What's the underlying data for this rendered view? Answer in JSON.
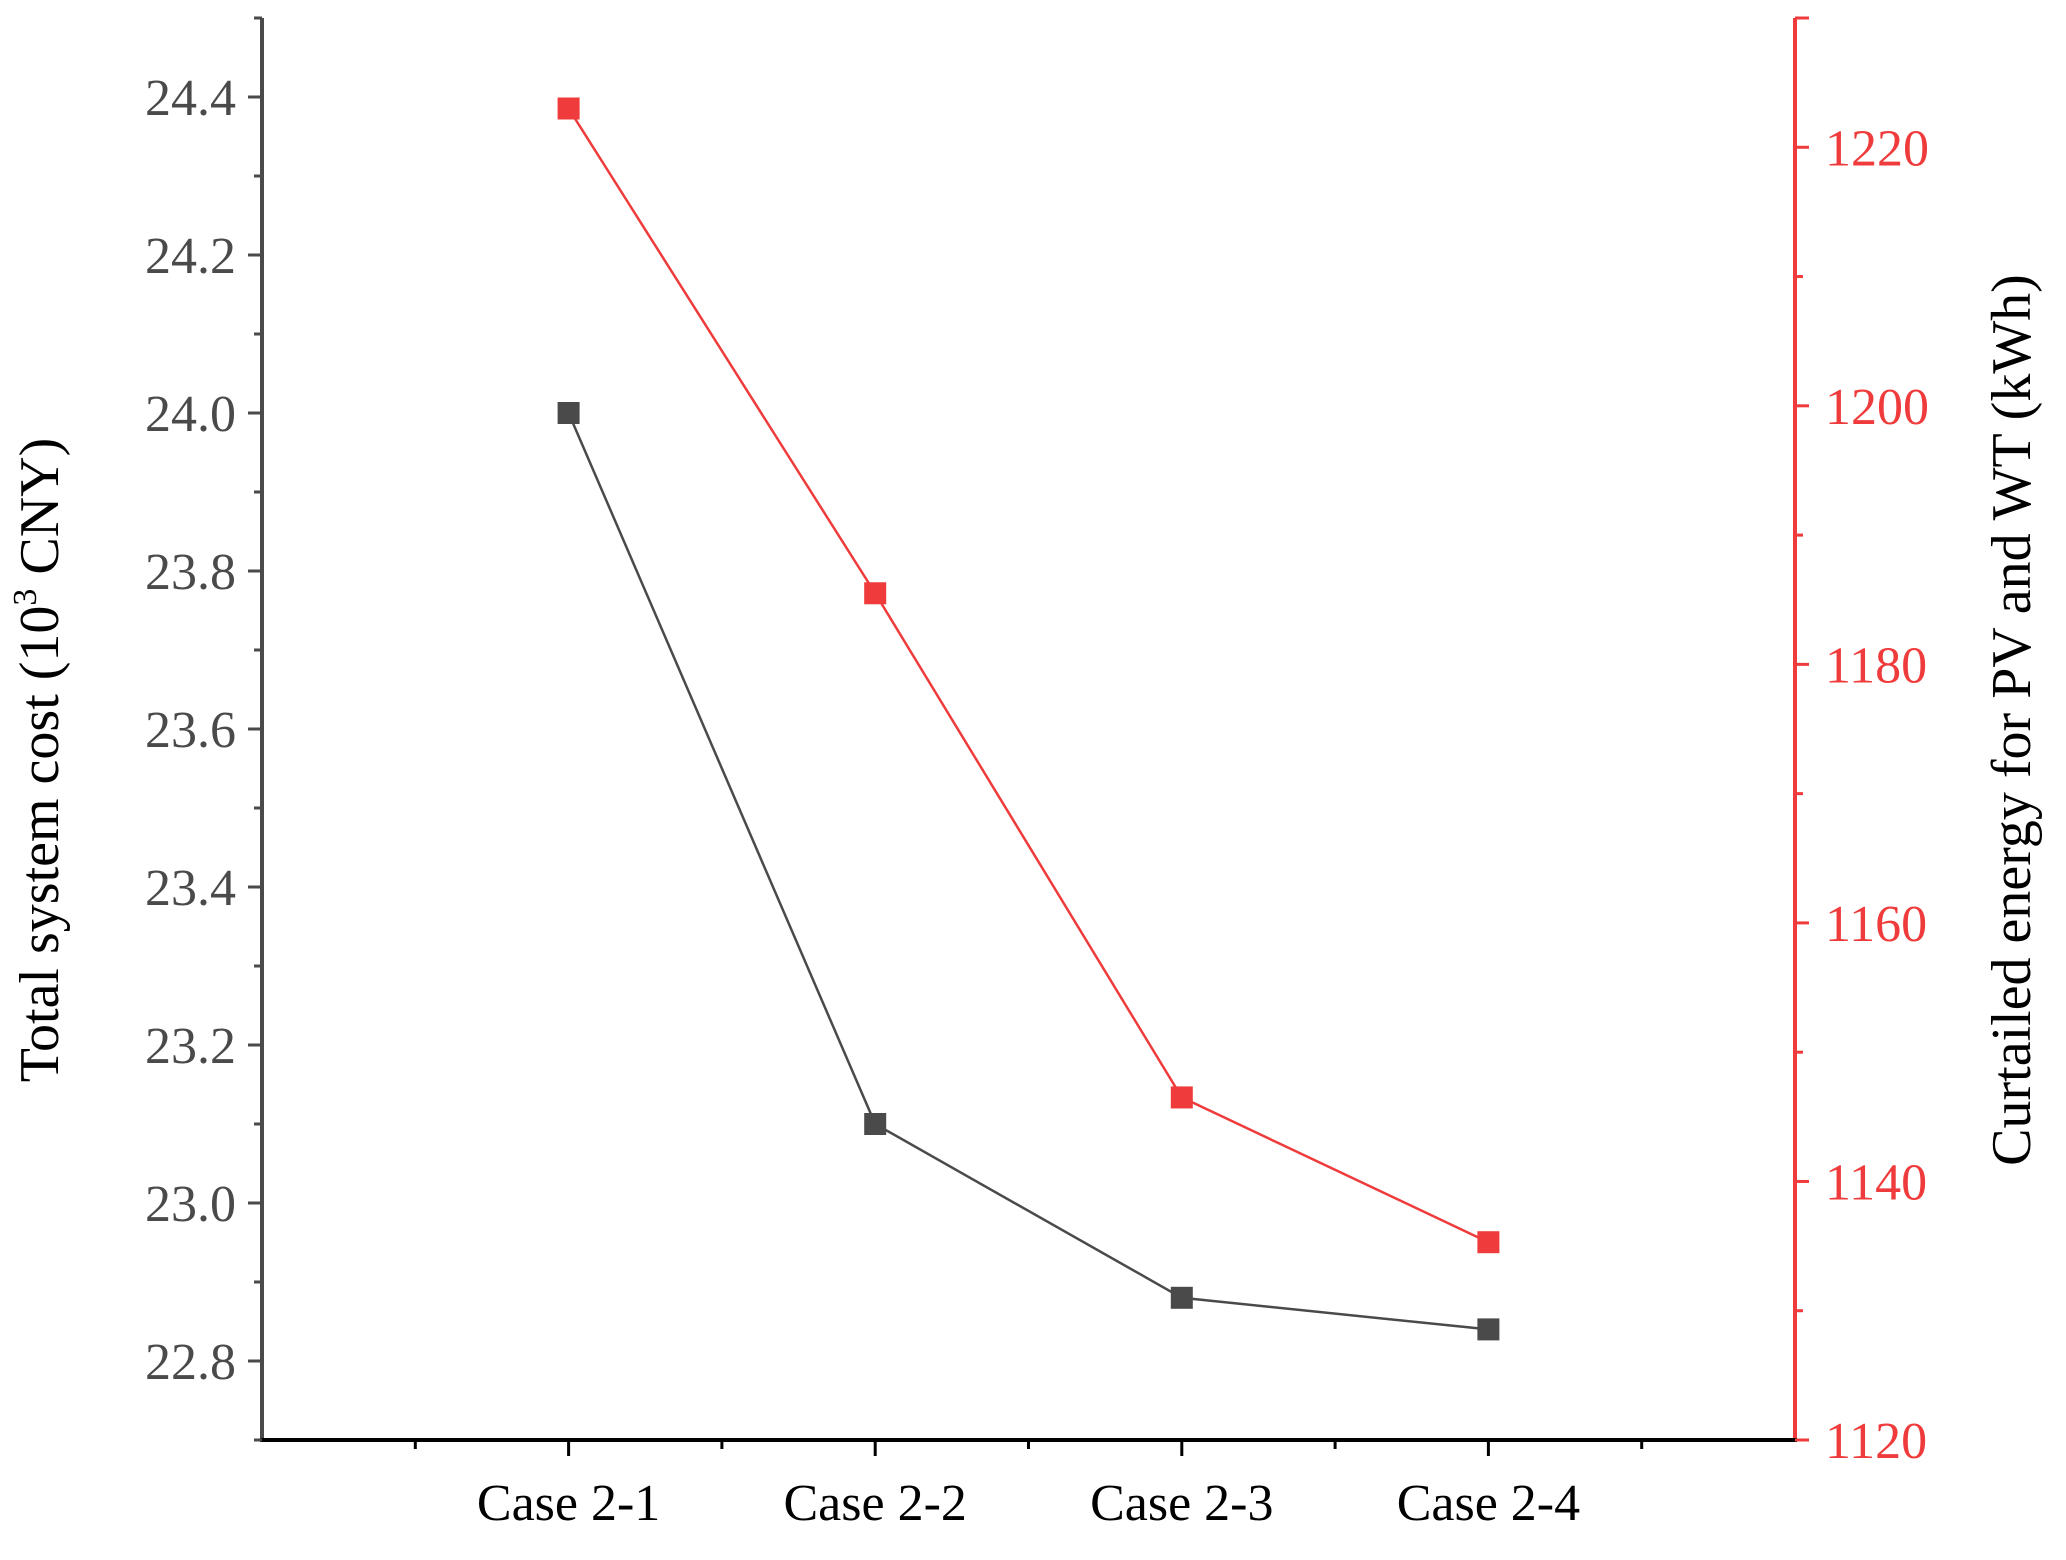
{
  "chart_data": {
    "type": "line",
    "categories": [
      "Case 2-1",
      "Case 2-2",
      "Case 2-3",
      "Case 2-4"
    ],
    "y_left": {
      "label_main": "Total system cost (10",
      "label_sup": "3",
      "label_end": " CNY)",
      "ylim": [
        22.7,
        24.5
      ],
      "ticks": [
        "22.8",
        "23.0",
        "23.2",
        "23.4",
        "23.6",
        "23.8",
        "24.0",
        "24.2",
        "24.4"
      ],
      "color": "#4a4a4a"
    },
    "y_right": {
      "label": "Curtailed energy for PV and WT (kWh)",
      "ylim": [
        1120,
        1230
      ],
      "ticks": [
        "1120",
        "1140",
        "1160",
        "1180",
        "1200",
        "1220"
      ],
      "color": "#ef3b3b"
    },
    "series": [
      {
        "axis": "left",
        "color": "#4a4a4a",
        "marker": "square",
        "values": [
          24.0,
          23.1,
          22.88,
          22.84
        ]
      },
      {
        "axis": "right",
        "color": "#ef3b3b",
        "marker": "square",
        "values": [
          1223,
          1185.5,
          1146.5,
          1135.3
        ]
      }
    ],
    "legend": "none",
    "grid": false
  }
}
